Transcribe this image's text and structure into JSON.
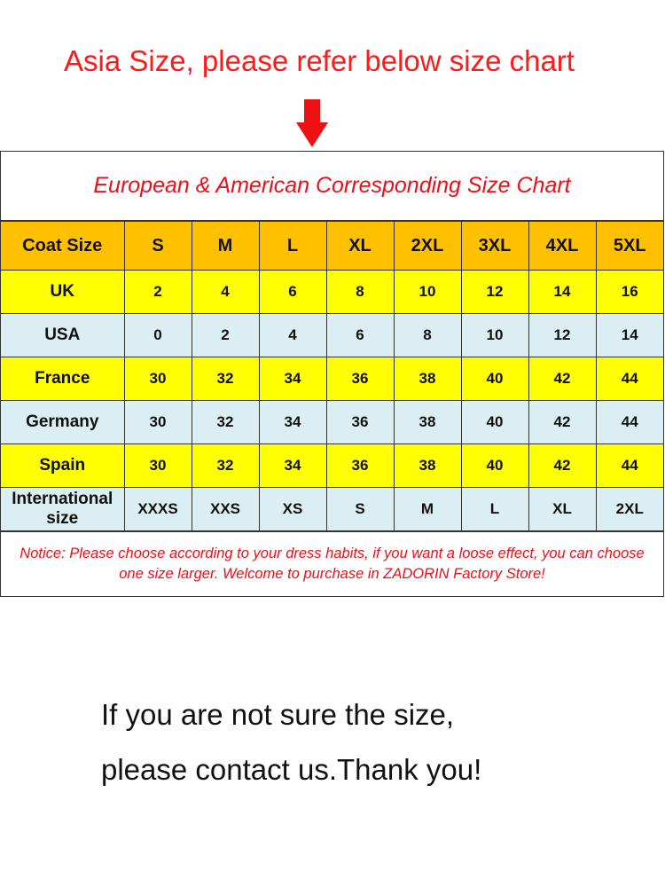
{
  "heading": "Asia Size, please refer below size chart",
  "chart": {
    "title": "European & American Corresponding Size Chart",
    "header_label": "Coat  Size",
    "sizes": [
      "S",
      "M",
      "L",
      "XL",
      "2XL",
      "3XL",
      "4XL",
      "5XL"
    ],
    "rows": [
      {
        "label": "UK",
        "values": [
          "2",
          "4",
          "6",
          "8",
          "10",
          "12",
          "14",
          "16"
        ]
      },
      {
        "label": "USA",
        "values": [
          "0",
          "2",
          "4",
          "6",
          "8",
          "10",
          "12",
          "14"
        ]
      },
      {
        "label": "France",
        "values": [
          "30",
          "32",
          "34",
          "36",
          "38",
          "40",
          "42",
          "44"
        ]
      },
      {
        "label": "Germany",
        "values": [
          "30",
          "32",
          "34",
          "36",
          "38",
          "40",
          "42",
          "44"
        ]
      },
      {
        "label": "Spain",
        "values": [
          "30",
          "32",
          "34",
          "36",
          "38",
          "40",
          "42",
          "44"
        ]
      },
      {
        "label": "International size",
        "values": [
          "XXXS",
          "XXS",
          "XS",
          "S",
          "M",
          "L",
          "XL",
          "2XL"
        ]
      }
    ],
    "notice": "Notice:  Please choose according to your dress habits, if you want a loose effect,  you can choose one size larger. Welcome to purchase in ZADORIN Factory Store!"
  },
  "footer": {
    "line1": "If you are not sure the size,",
    "line2": "please contact us.Thank you!"
  },
  "colors": {
    "red": "#ff0000",
    "header": "#ffc000",
    "yellow": "#ffff00",
    "blue": "#dbeef4"
  }
}
